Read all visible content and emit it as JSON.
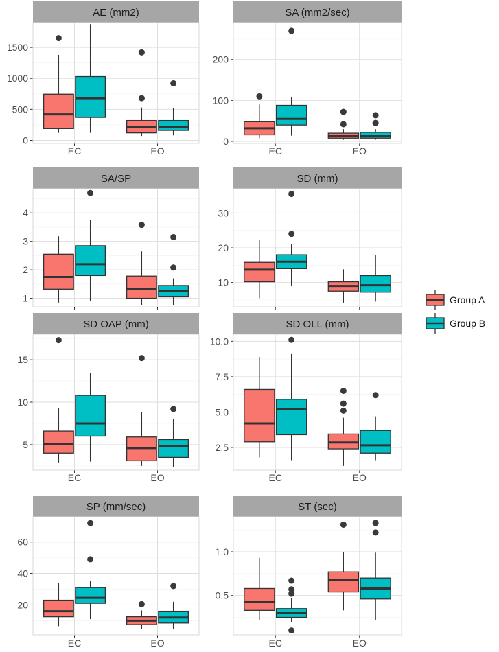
{
  "chart_data": {
    "type": "boxplot",
    "layout": "facet-grid",
    "categories": [
      "EC",
      "EO"
    ],
    "groups": [
      "Group A",
      "Group B"
    ],
    "colors": {
      "Group A": "#f8766d",
      "Group B": "#00bfc4"
    },
    "legend": {
      "position": "right",
      "entries": [
        "Group A",
        "Group B"
      ]
    },
    "panels": [
      {
        "title": "AE (mm2)",
        "ylim": [
          -50,
          1900
        ],
        "yticks": [
          0,
          500,
          1000,
          1500
        ],
        "boxes": {
          "EC": {
            "Group A": {
              "whisker_low": 120,
              "q1": 190,
              "median": 420,
              "q3": 745,
              "whisker_high": 1380,
              "outliers": [
                1650
              ]
            },
            "Group B": {
              "whisker_low": 120,
              "q1": 370,
              "median": 680,
              "q3": 1030,
              "whisker_high": 1875,
              "outliers": []
            }
          },
          "EO": {
            "Group A": {
              "whisker_low": 70,
              "q1": 120,
              "median": 220,
              "q3": 320,
              "whisker_high": 530,
              "outliers": [
                680,
                1420
              ]
            },
            "Group B": {
              "whisker_low": 80,
              "q1": 160,
              "median": 220,
              "q3": 320,
              "whisker_high": 520,
              "outliers": [
                920
              ]
            }
          }
        }
      },
      {
        "title": "SA (mm2/sec)",
        "ylim": [
          -5,
          290
        ],
        "yticks": [
          0,
          100,
          200
        ],
        "boxes": {
          "EC": {
            "Group A": {
              "whisker_low": 8,
              "q1": 16,
              "median": 32,
              "q3": 48,
              "whisker_high": 90,
              "outliers": [
                110
              ]
            },
            "Group B": {
              "whisker_low": 14,
              "q1": 40,
              "median": 55,
              "q3": 88,
              "whisker_high": 108,
              "outliers": [
                270
              ]
            }
          },
          "EO": {
            "Group A": {
              "whisker_low": 4,
              "q1": 8,
              "median": 13,
              "q3": 20,
              "whisker_high": 30,
              "outliers": [
                42,
                72
              ]
            },
            "Group B": {
              "whisker_low": 4,
              "q1": 8,
              "median": 13,
              "q3": 22,
              "whisker_high": 30,
              "outliers": [
                45,
                64
              ]
            }
          }
        }
      },
      {
        "title": "SA/SP",
        "ylim": [
          0.7,
          4.85
        ],
        "yticks": [
          1,
          2,
          3,
          4
        ],
        "boxes": {
          "EC": {
            "Group A": {
              "whisker_low": 0.85,
              "q1": 1.32,
              "median": 1.75,
              "q3": 2.55,
              "whisker_high": 3.18,
              "outliers": []
            },
            "Group B": {
              "whisker_low": 0.9,
              "q1": 1.8,
              "median": 2.2,
              "q3": 2.85,
              "whisker_high": 3.75,
              "outliers": [
                4.7
              ]
            }
          },
          "EO": {
            "Group A": {
              "whisker_low": 0.75,
              "q1": 1.0,
              "median": 1.33,
              "q3": 1.78,
              "whisker_high": 2.65,
              "outliers": [
                3.58
              ]
            },
            "Group B": {
              "whisker_low": 0.75,
              "q1": 1.05,
              "median": 1.25,
              "q3": 1.45,
              "whisker_high": 1.7,
              "outliers": [
                2.08,
                3.15
              ]
            }
          }
        }
      },
      {
        "title": "SD (mm)",
        "ylim": [
          3,
          37
        ],
        "yticks": [
          10,
          20,
          30
        ],
        "boxes": {
          "EC": {
            "Group A": {
              "whisker_low": 5.5,
              "q1": 10.2,
              "median": 13.7,
              "q3": 15.8,
              "whisker_high": 22.3,
              "outliers": []
            },
            "Group B": {
              "whisker_low": 9.0,
              "q1": 14.0,
              "median": 16.0,
              "q3": 18.0,
              "whisker_high": 21.0,
              "outliers": [
                24.0,
                35.5
              ]
            }
          },
          "EO": {
            "Group A": {
              "whisker_low": 4.2,
              "q1": 7.5,
              "median": 9.0,
              "q3": 10.2,
              "whisker_high": 13.8,
              "outliers": []
            },
            "Group B": {
              "whisker_low": 4.5,
              "q1": 7.2,
              "median": 9.2,
              "q3": 12.0,
              "whisker_high": 18.0,
              "outliers": []
            }
          }
        }
      },
      {
        "title": "SD OAP (mm)",
        "ylim": [
          2,
          18
        ],
        "yticks": [
          5,
          10,
          15
        ],
        "boxes": {
          "EC": {
            "Group A": {
              "whisker_low": 2.9,
              "q1": 4.0,
              "median": 5.1,
              "q3": 6.6,
              "whisker_high": 9.3,
              "outliers": [
                17.3
              ]
            },
            "Group B": {
              "whisker_low": 3.0,
              "q1": 6.0,
              "median": 7.5,
              "q3": 10.8,
              "whisker_high": 13.4,
              "outliers": []
            }
          },
          "EO": {
            "Group A": {
              "whisker_low": 2.5,
              "q1": 3.1,
              "median": 4.6,
              "q3": 5.9,
              "whisker_high": 8.8,
              "outliers": [
                15.2
              ]
            },
            "Group B": {
              "whisker_low": 2.4,
              "q1": 3.5,
              "median": 4.8,
              "q3": 5.6,
              "whisker_high": 8.0,
              "outliers": [
                9.2
              ]
            }
          }
        }
      },
      {
        "title": "SD OLL (mm)",
        "ylim": [
          0.9,
          10.5
        ],
        "yticks": [
          2.5,
          5.0,
          7.5,
          10.0
        ],
        "boxes": {
          "EC": {
            "Group A": {
              "whisker_low": 1.8,
              "q1": 2.9,
              "median": 4.2,
              "q3": 6.6,
              "whisker_high": 8.9,
              "outliers": []
            },
            "Group B": {
              "whisker_low": 1.6,
              "q1": 3.4,
              "median": 5.2,
              "q3": 5.9,
              "whisker_high": 9.1,
              "outliers": [
                10.1
              ]
            }
          },
          "EO": {
            "Group A": {
              "whisker_low": 1.2,
              "q1": 2.4,
              "median": 2.85,
              "q3": 3.45,
              "whisker_high": 4.6,
              "outliers": [
                5.1,
                5.6,
                6.5
              ]
            },
            "Group B": {
              "whisker_low": 1.6,
              "q1": 2.1,
              "median": 2.65,
              "q3": 3.7,
              "whisker_high": 4.7,
              "outliers": [
                6.2
              ]
            }
          }
        }
      },
      {
        "title": "SP (mm/sec)",
        "ylim": [
          1,
          76
        ],
        "yticks": [
          20,
          40,
          60
        ],
        "boxes": {
          "EC": {
            "Group A": {
              "whisker_low": 6.5,
              "q1": 12.5,
              "median": 16.0,
              "q3": 23.0,
              "whisker_high": 34.0,
              "outliers": []
            },
            "Group B": {
              "whisker_low": 11.0,
              "q1": 21.0,
              "median": 24.5,
              "q3": 31.0,
              "whisker_high": 35.0,
              "outliers": [
                49.0,
                72.0
              ]
            }
          },
          "EO": {
            "Group A": {
              "whisker_low": 4.5,
              "q1": 7.5,
              "median": 10.0,
              "q3": 12.5,
              "whisker_high": 16.5,
              "outliers": [
                20.5
              ]
            },
            "Group B": {
              "whisker_low": 4.5,
              "q1": 8.5,
              "median": 12.0,
              "q3": 16.0,
              "whisker_high": 22.0,
              "outliers": [
                32.0
              ]
            }
          }
        }
      },
      {
        "title": "ST (sec)",
        "ylim": [
          0.05,
          1.4
        ],
        "yticks": [
          0.5,
          1.0
        ],
        "boxes": {
          "EC": {
            "Group A": {
              "whisker_low": 0.22,
              "q1": 0.33,
              "median": 0.43,
              "q3": 0.58,
              "whisker_high": 0.93,
              "outliers": []
            },
            "Group B": {
              "whisker_low": 0.2,
              "q1": 0.25,
              "median": 0.3,
              "q3": 0.35,
              "whisker_high": 0.47,
              "outliers": [
                0.1,
                0.52,
                0.57,
                0.67
              ]
            }
          },
          "EO": {
            "Group A": {
              "whisker_low": 0.33,
              "q1": 0.54,
              "median": 0.68,
              "q3": 0.77,
              "whisker_high": 1.0,
              "outliers": [
                1.31
              ]
            },
            "Group B": {
              "whisker_low": 0.22,
              "q1": 0.46,
              "median": 0.58,
              "q3": 0.7,
              "whisker_high": 0.99,
              "outliers": [
                1.22,
                1.33
              ]
            }
          }
        }
      }
    ]
  }
}
